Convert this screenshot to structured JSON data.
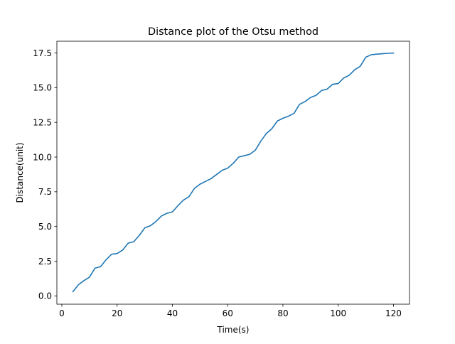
{
  "chart_data": {
    "type": "line",
    "title": "Distance plot of the Otsu method",
    "xlabel": "Time(s)",
    "ylabel": "Distance(unit)",
    "xlim": [
      -1.8,
      125.8
    ],
    "ylim": [
      -0.6,
      18.35
    ],
    "xticks": [
      0,
      20,
      40,
      60,
      80,
      100,
      120
    ],
    "xtick_labels": [
      "0",
      "20",
      "40",
      "60",
      "80",
      "100",
      "120"
    ],
    "yticks": [
      0.0,
      2.5,
      5.0,
      7.5,
      10.0,
      12.5,
      15.0,
      17.5
    ],
    "ytick_labels": [
      "0.0",
      "2.5",
      "5.0",
      "7.5",
      "10.0",
      "12.5",
      "15.0",
      "17.5"
    ],
    "grid": false,
    "series": [
      {
        "color": "#1f77b4",
        "x": [
          4,
          6,
          8,
          10,
          12,
          14,
          16,
          18,
          20,
          22,
          24,
          26,
          28,
          30,
          32,
          34,
          36,
          38,
          40,
          42,
          44,
          46,
          48,
          50,
          52,
          54,
          56,
          58,
          60,
          62,
          64,
          66,
          68,
          70,
          72,
          74,
          76,
          78,
          80,
          82,
          84,
          86,
          88,
          90,
          92,
          94,
          96,
          98,
          100,
          102,
          104,
          106,
          108,
          110,
          112,
          114,
          116,
          118,
          120
        ],
        "y": [
          0.3,
          0.8,
          1.1,
          1.35,
          2.0,
          2.1,
          2.6,
          3.0,
          3.05,
          3.3,
          3.8,
          3.9,
          4.35,
          4.9,
          5.05,
          5.35,
          5.75,
          5.95,
          6.05,
          6.5,
          6.9,
          7.15,
          7.75,
          8.05,
          8.25,
          8.45,
          8.75,
          9.05,
          9.2,
          9.55,
          10.0,
          10.1,
          10.2,
          10.5,
          11.15,
          11.7,
          12.05,
          12.6,
          12.8,
          12.95,
          13.15,
          13.8,
          14.0,
          14.3,
          14.45,
          14.8,
          14.9,
          15.25,
          15.3,
          15.7,
          15.9,
          16.3,
          16.55,
          17.2,
          17.38,
          17.42,
          17.45,
          17.48,
          17.5
        ]
      }
    ]
  }
}
